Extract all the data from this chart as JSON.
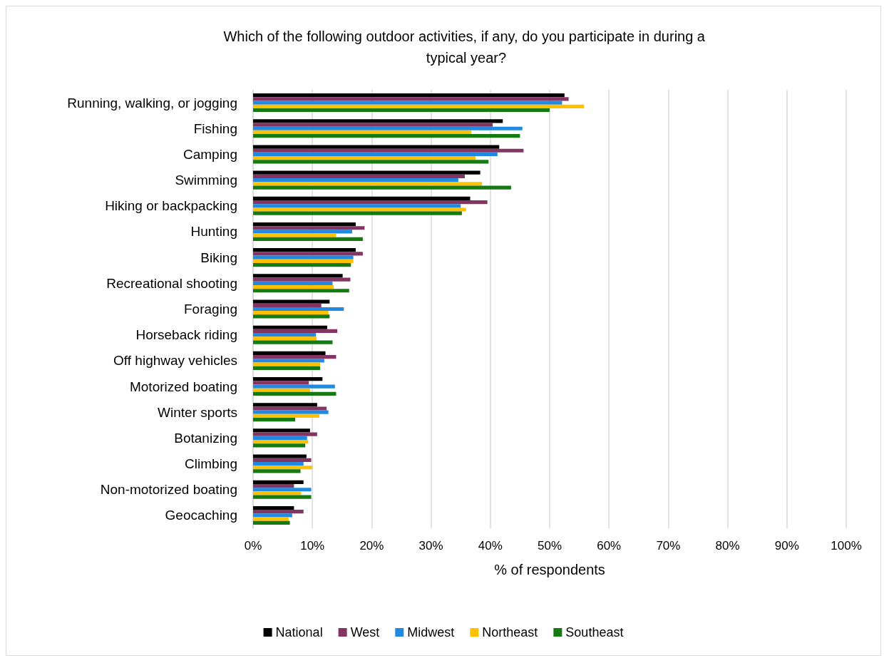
{
  "chart_data": {
    "type": "bar",
    "orientation": "horizontal",
    "title": "Which of the following outdoor activities, if any, do you participate in during a typical year?",
    "xlabel": "% of respondents",
    "categories": [
      "Running, walking, or jogging",
      "Fishing",
      "Camping",
      "Swimming",
      "Hiking or backpacking",
      "Hunting",
      "Biking",
      "Recreational shooting",
      "Foraging",
      "Horseback riding",
      "Off highway vehicles",
      "Motorized boating",
      "Winter sports",
      "Botanizing",
      "Climbing",
      "Non-motorized boating",
      "Geocaching"
    ],
    "series": [
      {
        "name": "National",
        "color": "#000000",
        "values": [
          52.5,
          42.1,
          41.5,
          38.3,
          36.6,
          17.3,
          17.3,
          15.1,
          12.9,
          12.5,
          12.2,
          11.7,
          10.8,
          9.6,
          9.0,
          8.5,
          6.9
        ]
      },
      {
        "name": "West",
        "color": "#833463",
        "values": [
          53.2,
          40.4,
          45.6,
          35.7,
          39.5,
          18.8,
          18.5,
          16.4,
          11.5,
          14.2,
          14.0,
          9.4,
          12.4,
          10.8,
          9.8,
          6.9,
          8.5
        ]
      },
      {
        "name": "Midwest",
        "color": "#2189e0",
        "values": [
          52.1,
          45.4,
          41.2,
          34.6,
          35.0,
          16.7,
          16.9,
          13.4,
          15.3,
          10.6,
          12.0,
          13.8,
          12.7,
          9.1,
          8.5,
          9.8,
          6.6
        ]
      },
      {
        "name": "Northeast",
        "color": "#ffc000",
        "values": [
          55.8,
          36.8,
          37.5,
          38.6,
          35.9,
          14.0,
          16.9,
          13.6,
          12.7,
          10.7,
          11.3,
          9.6,
          11.2,
          9.3,
          10.0,
          8.1,
          6.0
        ]
      },
      {
        "name": "Southeast",
        "color": "#157a12",
        "values": [
          50.0,
          45.0,
          39.7,
          43.5,
          35.2,
          18.5,
          16.5,
          16.2,
          12.9,
          13.4,
          11.3,
          14.0,
          7.1,
          8.8,
          8.0,
          9.8,
          6.2
        ]
      }
    ],
    "xlim": [
      0,
      100
    ],
    "xticks": [
      {
        "value": 0,
        "label": "0%"
      },
      {
        "value": 10,
        "label": "10%"
      },
      {
        "value": 20,
        "label": "20%"
      },
      {
        "value": 30,
        "label": "30%"
      },
      {
        "value": 40,
        "label": "40%"
      },
      {
        "value": 50,
        "label": "50%"
      },
      {
        "value": 60,
        "label": "60%"
      },
      {
        "value": 70,
        "label": "70%"
      },
      {
        "value": 80,
        "label": "80%"
      },
      {
        "value": 90,
        "label": "90%"
      },
      {
        "value": 100,
        "label": "100%"
      }
    ],
    "grid": "x",
    "legend": "bottom"
  }
}
